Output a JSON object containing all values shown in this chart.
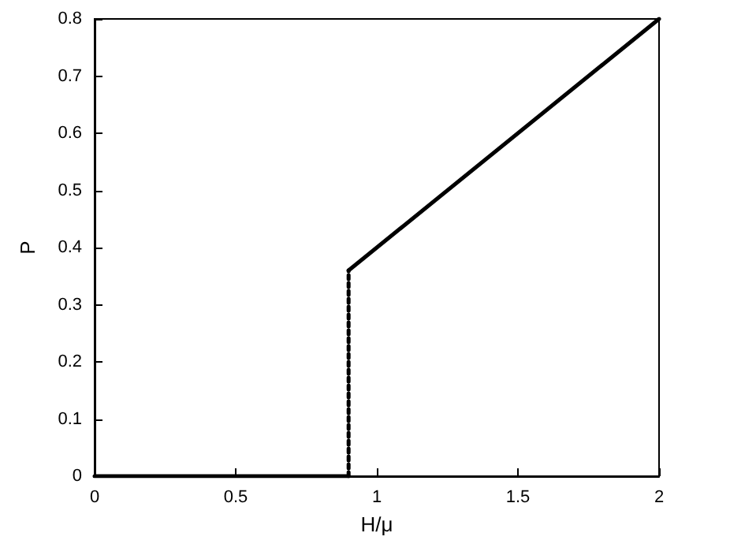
{
  "chart_data": {
    "type": "line",
    "xlabel": "H/μ",
    "ylabel": "P",
    "xlim": [
      0,
      2
    ],
    "ylim": [
      0,
      0.8
    ],
    "xticks": [
      0,
      0.5,
      1,
      1.5,
      2
    ],
    "yticks": [
      0,
      0.1,
      0.2,
      0.3,
      0.4,
      0.5,
      0.6,
      0.7,
      0.8
    ],
    "grid": false,
    "marker": "none",
    "series": [
      {
        "color": "#000000",
        "x": [
          0,
          0.9
        ],
        "values": [
          0,
          0
        ],
        "line_style": "solid"
      },
      {
        "color": "#000000",
        "x": [
          0.9,
          0.9
        ],
        "values": [
          0,
          0.36
        ],
        "line_style": "dotted"
      },
      {
        "color": "#000000",
        "x": [
          0.9,
          2
        ],
        "values": [
          0.36,
          0.8
        ],
        "line_style": "solid"
      }
    ]
  }
}
